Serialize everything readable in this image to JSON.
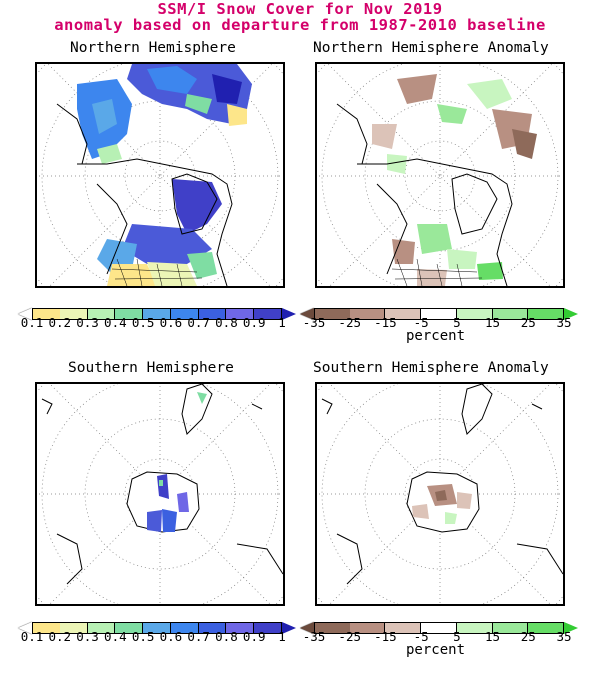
{
  "title": {
    "line1": "SSM/I Snow Cover for Nov 2019",
    "line2": "anomaly based on departure from 1987-2010 baseline"
  },
  "panels": {
    "nh_cover": {
      "title": "Northern Hemisphere"
    },
    "nh_anomaly": {
      "title": "Northern Hemisphere Anomaly"
    },
    "sh_cover": {
      "title": "Southern Hemisphere"
    },
    "sh_anomaly": {
      "title": "Southern Hemisphere Anomaly"
    }
  },
  "colorbars": {
    "cover": {
      "labels": [
        "0.1",
        "0.2",
        "0.3",
        "0.4",
        "0.5",
        "0.6",
        "0.7",
        "0.8",
        "0.9",
        "1"
      ],
      "colors": [
        "#ffffff",
        "#fde68a",
        "#ecf5b6",
        "#b7f0b4",
        "#7fdda3",
        "#5aa8e8",
        "#3d86ee",
        "#3b60e0",
        "#6f67e6",
        "#4040c8",
        "#2020b0"
      ]
    },
    "anomaly": {
      "labels": [
        "-35",
        "-25",
        "-15",
        "-5",
        "5",
        "15",
        "25",
        "35"
      ],
      "colors": [
        "#6b4a3c",
        "#8e6a5a",
        "#b89082",
        "#dcc3b8",
        "#ffffff",
        "#c8f5c0",
        "#9ae89a",
        "#66dd66",
        "#33cc33"
      ],
      "unit": "percent"
    }
  }
}
